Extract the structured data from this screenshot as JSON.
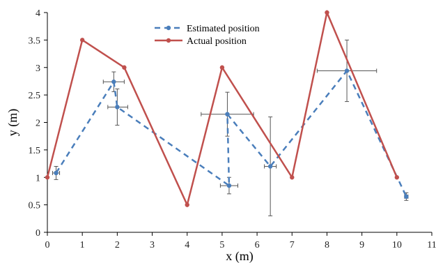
{
  "chart_data": {
    "type": "scatter",
    "xlabel": "x (m)",
    "ylabel": "y (m)",
    "xlim": [
      0,
      11
    ],
    "ylim": [
      0,
      4
    ],
    "x_ticks": [
      "0",
      "1",
      "2",
      "3",
      "4",
      "5",
      "6",
      "7",
      "8",
      "9",
      "10",
      "11"
    ],
    "y_ticks": [
      "0",
      "0.5",
      "1",
      "1.5",
      "2",
      "2.5",
      "3",
      "3.5",
      "4"
    ],
    "grid": "none",
    "legend_placement": "top-center",
    "series": [
      {
        "name": "Estimated position",
        "style": "dashed line with circle markers and error bars",
        "color": "#4a7ebb",
        "points": [
          {
            "x": 0.25,
            "y": 1.08,
            "xerr_minus": 0.1,
            "xerr_plus": 0.1,
            "yerr_minus": 0.12,
            "yerr_plus": 0.12
          },
          {
            "x": 1.9,
            "y": 2.74,
            "xerr_minus": 0.3,
            "xerr_plus": 0.3,
            "yerr_minus": 0.18,
            "yerr_plus": 0.18
          },
          {
            "x": 2.0,
            "y": 2.28,
            "xerr_minus": 0.27,
            "xerr_plus": 0.3,
            "yerr_minus": 0.33,
            "yerr_plus": 0.33
          },
          {
            "x": 5.2,
            "y": 0.85,
            "xerr_minus": 0.25,
            "xerr_plus": 0.25,
            "yerr_minus": 0.15,
            "yerr_plus": 0.15
          },
          {
            "x": 5.15,
            "y": 2.15,
            "xerr_minus": 0.75,
            "xerr_plus": 0.75,
            "yerr_minus": 0.4,
            "yerr_plus": 0.4
          },
          {
            "x": 6.38,
            "y": 1.2,
            "xerr_minus": 0.17,
            "xerr_plus": 0.17,
            "yerr_minus": 0.9,
            "yerr_plus": 0.9
          },
          {
            "x": 8.57,
            "y": 2.94,
            "xerr_minus": 0.85,
            "xerr_plus": 0.85,
            "yerr_minus": 0.56,
            "yerr_plus": 0.56
          },
          {
            "x": 10.27,
            "y": 0.65,
            "xerr_minus": 0.05,
            "xerr_plus": 0.05,
            "yerr_minus": 0.07,
            "yerr_plus": 0.07
          }
        ]
      },
      {
        "name": "Actual position",
        "style": "solid line with circle markers",
        "color": "#c0504d",
        "points": [
          {
            "x": 0,
            "y": 1
          },
          {
            "x": 1,
            "y": 3.5
          },
          {
            "x": 2.2,
            "y": 3.0
          },
          {
            "x": 4,
            "y": 0.5
          },
          {
            "x": 5,
            "y": 3.0
          },
          {
            "x": 7,
            "y": 1
          },
          {
            "x": 8,
            "y": 4
          },
          {
            "x": 10,
            "y": 1
          }
        ]
      }
    ]
  }
}
